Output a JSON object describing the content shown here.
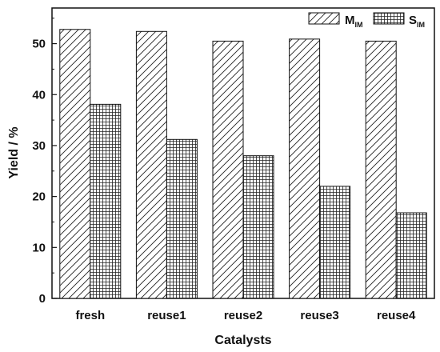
{
  "chart_data": {
    "type": "bar",
    "categories": [
      "fresh",
      "reuse1",
      "reuse2",
      "reuse3",
      "reuse4"
    ],
    "series": [
      {
        "name": "M",
        "name_sub": "IM",
        "pattern": "diagonal-hatch",
        "values": [
          52.8,
          52.4,
          50.5,
          50.9,
          50.5
        ]
      },
      {
        "name": "S",
        "name_sub": "IM",
        "pattern": "grid-hatch",
        "values": [
          38.1,
          31.2,
          28.0,
          22.0,
          16.8
        ]
      }
    ],
    "xlabel": "Catalysts",
    "ylabel": "Yield / %",
    "ylim": [
      0,
      57
    ],
    "yticks": [
      0,
      10,
      20,
      30,
      40,
      50
    ],
    "legend_position": "top-right",
    "grid": false
  }
}
